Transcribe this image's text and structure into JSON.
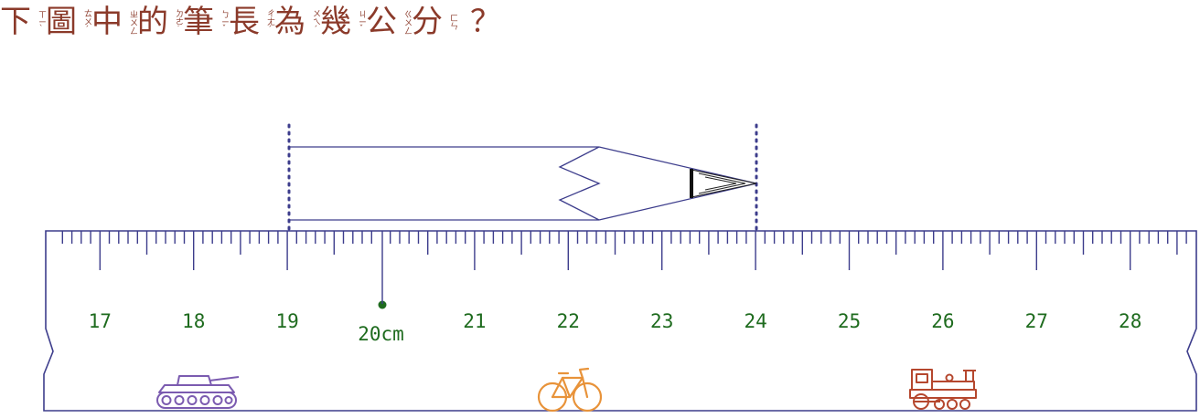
{
  "question": {
    "text": "下圖中的筆長為幾公分？",
    "chars": [
      {
        "zh": "下",
        "zhuyin": "ㄒㄧˋ"
      },
      {
        "zh": "圖",
        "zhuyin": "ㄊㄨˊ"
      },
      {
        "zh": "中",
        "zhuyin": "ㄓㄨㄥ"
      },
      {
        "zh": "的",
        "zhuyin": "ㄉㄜ˙"
      },
      {
        "zh": "筆",
        "zhuyin": "ㄅㄧˇ"
      },
      {
        "zh": "長",
        "zhuyin": "ㄔㄤˊ"
      },
      {
        "zh": "為",
        "zhuyin": "ㄨㄟˊ"
      },
      {
        "zh": "幾",
        "zhuyin": "ㄐㄧˇ"
      },
      {
        "zh": "公",
        "zhuyin": "ㄍㄨㄥ"
      },
      {
        "zh": "分",
        "zhuyin": "ㄈㄣ"
      }
    ],
    "punct": "？"
  },
  "ruler": {
    "labels": [
      "17",
      "18",
      "19",
      "20cm",
      "21",
      "22",
      "23",
      "24",
      "25",
      "26",
      "27",
      "28"
    ],
    "unit": "cm",
    "pencil_start_cm": 19,
    "pencil_end_cm": 24,
    "icons": [
      "tank-icon",
      "bicycle-icon",
      "locomotive-icon"
    ]
  },
  "colors": {
    "question_text": "#8b3a2a",
    "ruler_stroke": "#3d3d8c",
    "numbers": "#1e6b1e",
    "tank": "#7b5bb0",
    "bicycle": "#e8933a",
    "locomotive": "#b5472e"
  }
}
